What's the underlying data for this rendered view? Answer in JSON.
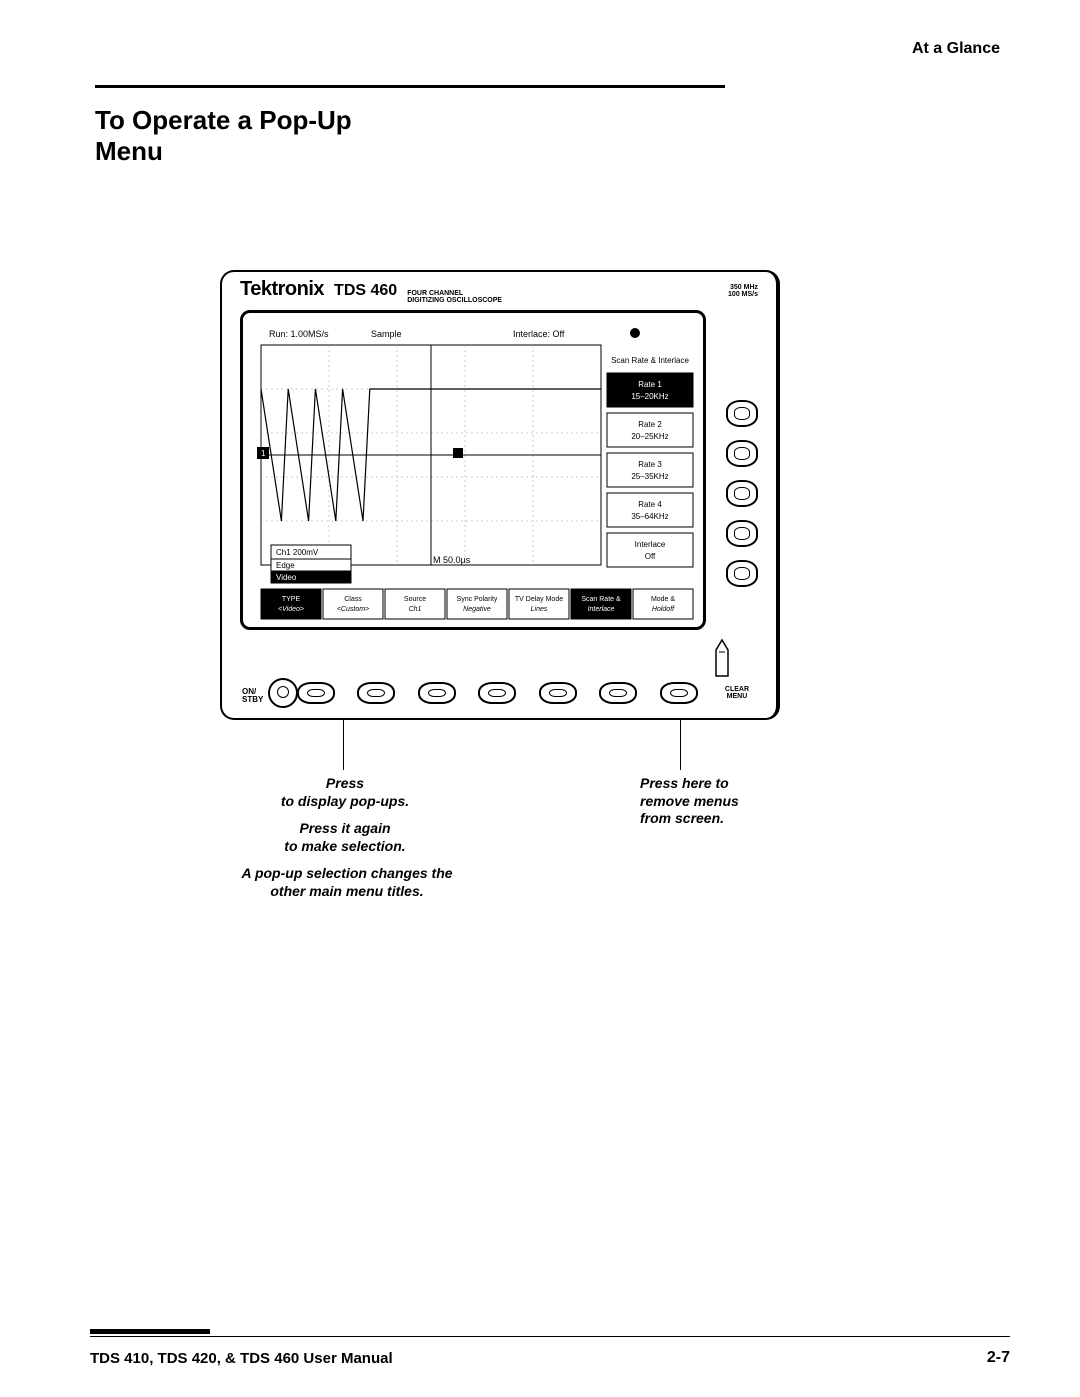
{
  "header_right": "At a Glance",
  "section_title_line1": "To Operate a Pop-Up",
  "section_title_line2": "Menu",
  "bezel": {
    "brand": "Tektronix",
    "model": "TDS 460",
    "subtitle1": "FOUR CHANNEL",
    "subtitle2": "DIGITIZING OSCILLOSCOPE",
    "spec1": "350 MHz",
    "spec2": "100 MS/s"
  },
  "screen": {
    "status_left": "Run: 1.00MS/s",
    "status_mid": "Sample",
    "status_right": "Interlace: Off",
    "ch_label": "Ch1  200mV",
    "time_label": "M 50.0µs",
    "side_menu": {
      "title": "Scan Rate & Interlace",
      "items": [
        {
          "l1": "Rate 1",
          "l2": "15–20KHz",
          "selected": true
        },
        {
          "l1": "Rate 2",
          "l2": "20–25KHz",
          "selected": false
        },
        {
          "l1": "Rate 3",
          "l2": "25–35KHz",
          "selected": false
        },
        {
          "l1": "Rate 4",
          "l2": "35–64KHz",
          "selected": false
        },
        {
          "l1": "Interlace",
          "l2": "Off",
          "selected": false
        }
      ]
    },
    "popup": {
      "title": "Ch1  200mV",
      "items": [
        "Edge",
        "Video"
      ],
      "selected_index": 1
    },
    "bottom_menu": [
      {
        "l1": "TYPE",
        "l2": "<Video>",
        "selected": true
      },
      {
        "l1": "Class",
        "l2": "<Custom>",
        "selected": false
      },
      {
        "l1": "Source",
        "l2": "Ch1",
        "selected": false
      },
      {
        "l1": "Sync Polarity",
        "l2": "Negative",
        "selected": false
      },
      {
        "l1": "TV Delay Mode",
        "l2": "Lines",
        "selected": false
      },
      {
        "l1": "Scan Rate &",
        "l2": "Interlace",
        "selected": true
      },
      {
        "l1": "Mode &",
        "l2": "Holdoff",
        "selected": false
      }
    ],
    "waveform": {
      "type": "line",
      "x": [
        0,
        6,
        8,
        14,
        16,
        22,
        24,
        30,
        32,
        38,
        40,
        46,
        48,
        54,
        56,
        62,
        64,
        70,
        72,
        78,
        80,
        86,
        88,
        94,
        96,
        100
      ],
      "y": [
        80,
        20,
        80,
        20,
        80,
        20,
        80,
        20,
        80,
        80,
        80,
        80,
        80,
        80,
        80,
        80,
        80,
        80,
        80,
        80,
        80,
        80,
        80,
        80,
        80,
        80
      ],
      "x_range": [
        0,
        100
      ],
      "y_range": [
        0,
        100
      ],
      "stroke": "#000",
      "stroke_width": 1.2
    }
  },
  "labels": {
    "on_stby_1": "ON/",
    "on_stby_2": "STBY",
    "clear_1": "CLEAR",
    "clear_2": "MENU"
  },
  "callouts": {
    "left_1": "Press",
    "left_2": "to display pop-ups.",
    "left_3": "Press it again",
    "left_4": "to make selection.",
    "left_5": "A pop-up selection changes the",
    "left_6": "other main menu titles.",
    "right_1": "Press here to",
    "right_2": "remove menus",
    "right_3": "from screen."
  },
  "footer": {
    "left": "TDS 410, TDS 420, & TDS 460 User Manual",
    "right": "2-7"
  }
}
